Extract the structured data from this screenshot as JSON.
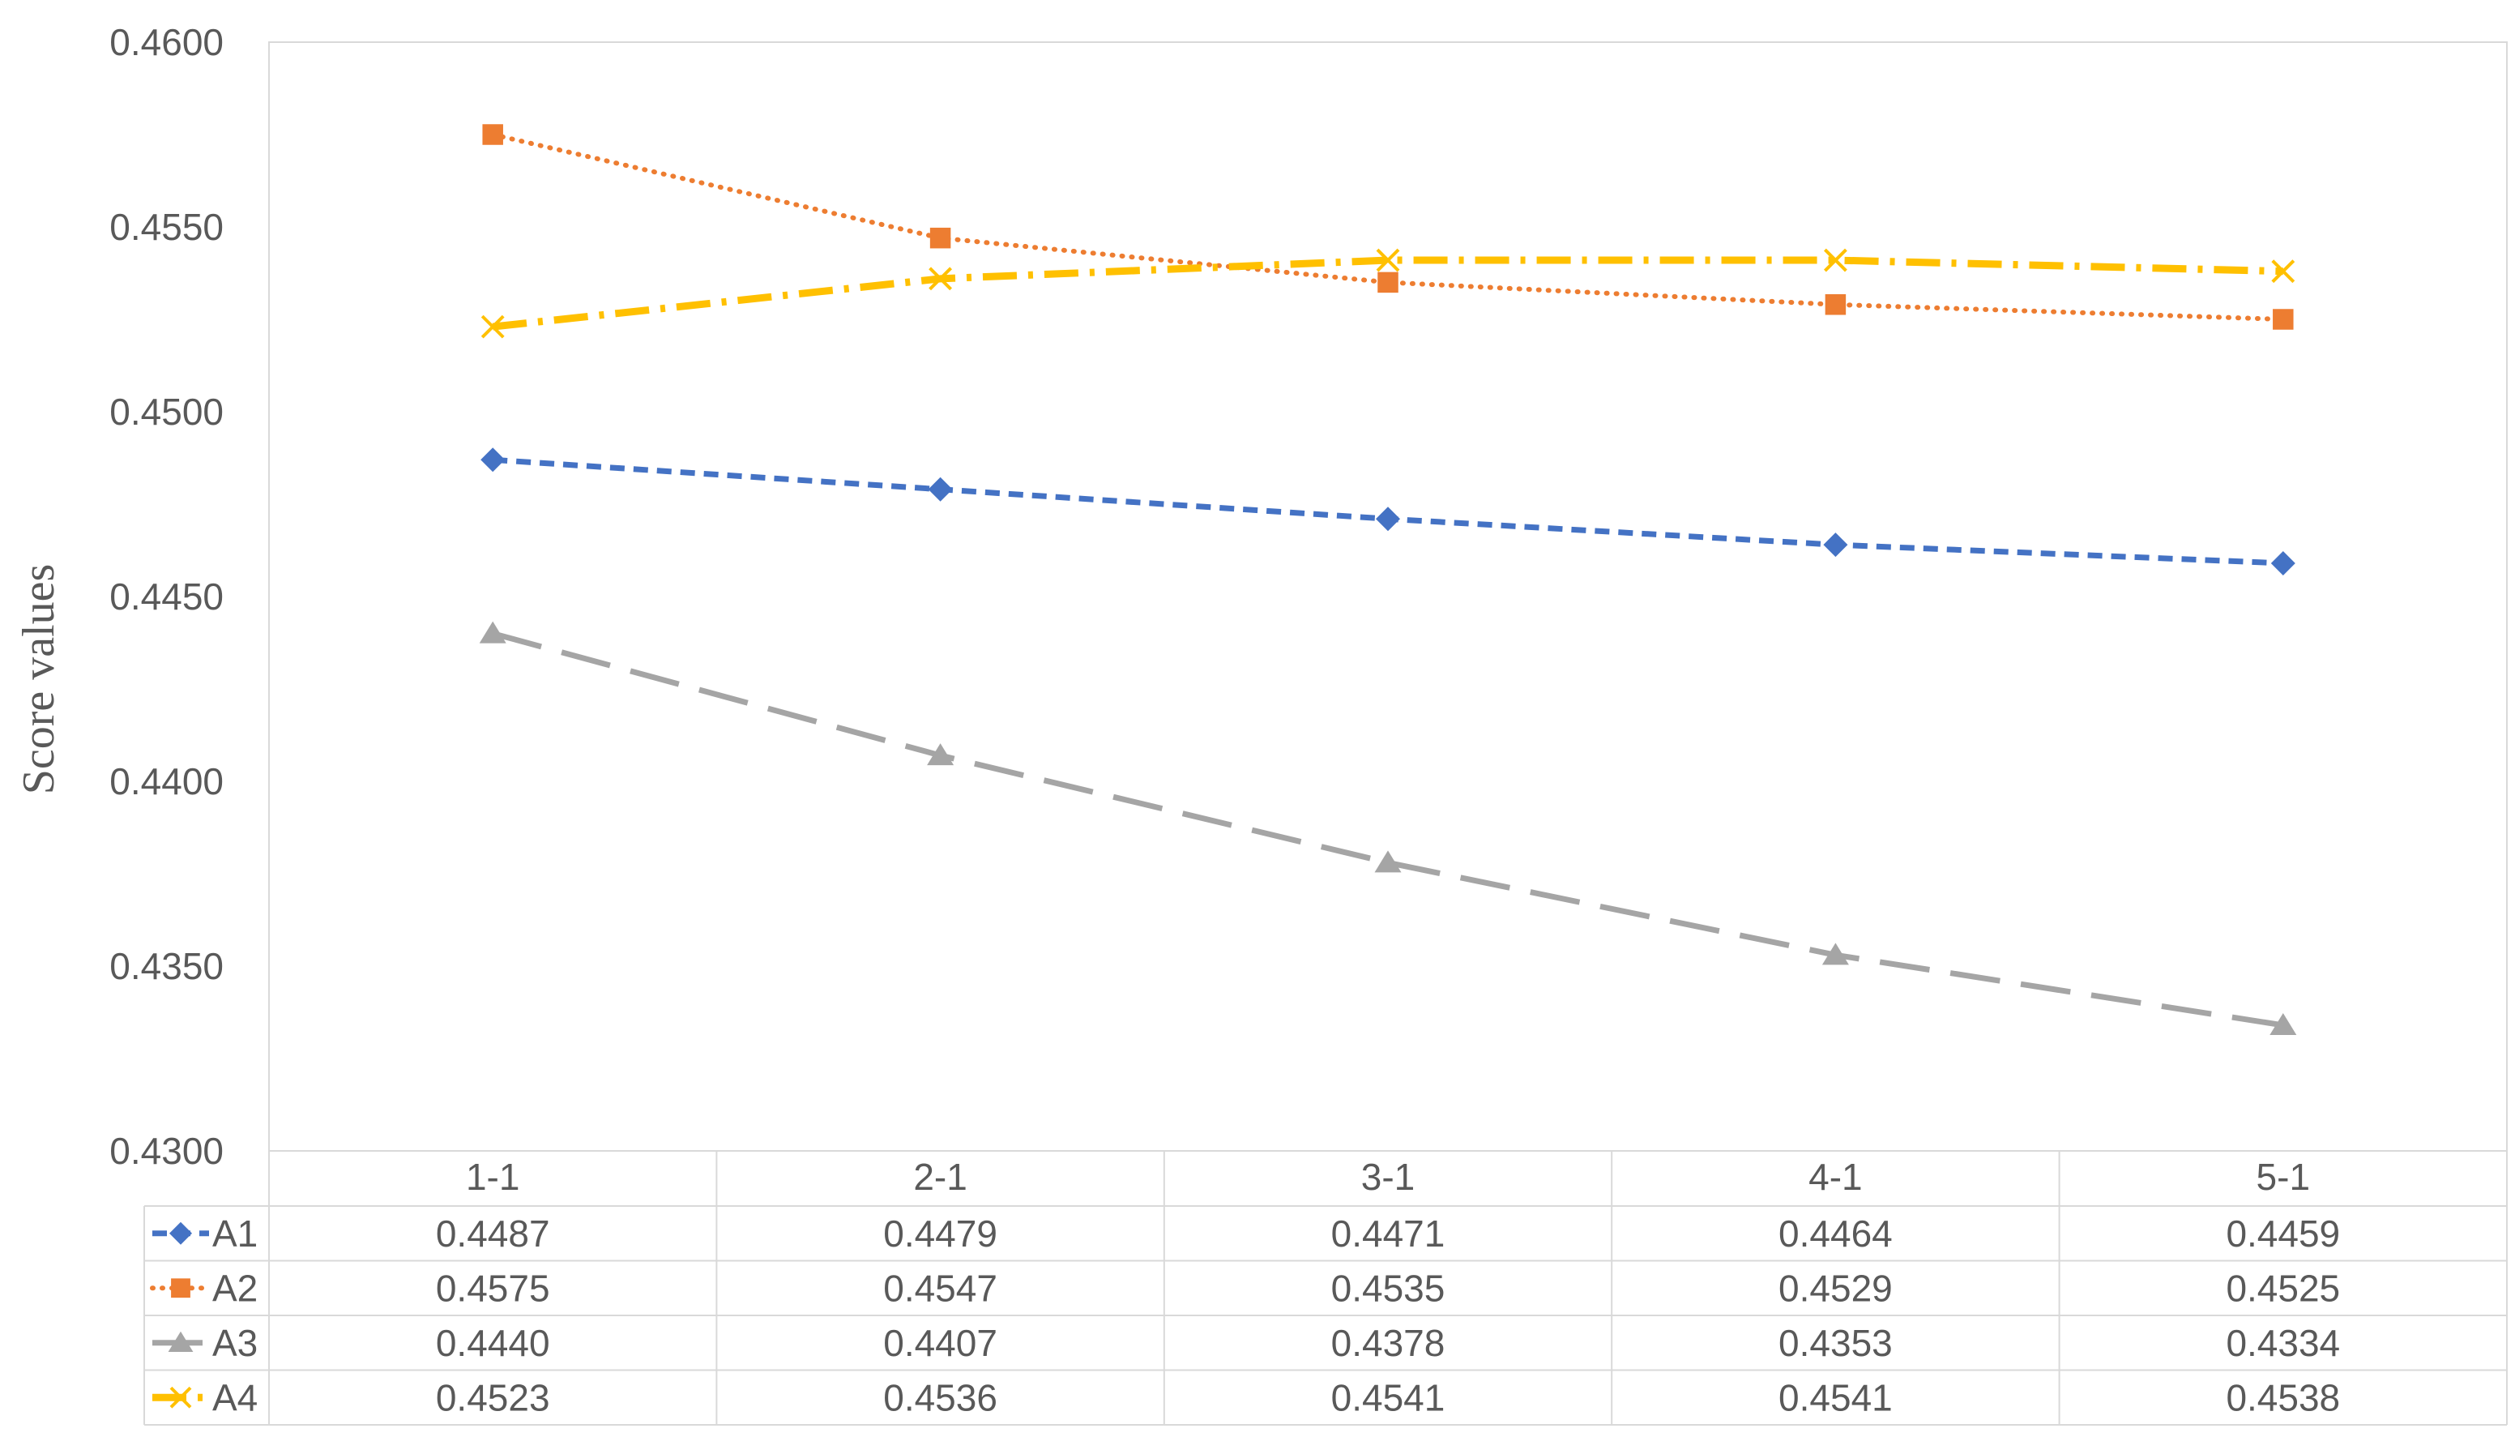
{
  "chart_data": {
    "type": "line",
    "ylabel": "Score values",
    "xlabel": "",
    "title": "",
    "ylim": [
      0.43,
      0.46
    ],
    "y_ticks": [
      "0.4300",
      "0.4350",
      "0.4400",
      "0.4450",
      "0.4500",
      "0.4550",
      "0.4600"
    ],
    "y_tick_values": [
      0.43,
      0.435,
      0.44,
      0.445,
      0.45,
      0.455,
      0.46
    ],
    "categories": [
      "1-1",
      "2-1",
      "3-1",
      "4-1",
      "5-1"
    ],
    "grid": false,
    "legend": "data-table-below",
    "series": [
      {
        "name": "A1",
        "values": [
          0.4487,
          0.4479,
          0.4471,
          0.4464,
          0.4459
        ],
        "labels": [
          "0.4487",
          "0.4479",
          "0.4471",
          "0.4464",
          "0.4459"
        ],
        "color": "#4472C4",
        "marker": "diamond",
        "dash": "dash"
      },
      {
        "name": "A2",
        "values": [
          0.4575,
          0.4547,
          0.4535,
          0.4529,
          0.4525
        ],
        "labels": [
          "0.4575",
          "0.4547",
          "0.4535",
          "0.4529",
          "0.4525"
        ],
        "color": "#ED7D31",
        "marker": "square",
        "dash": "dot"
      },
      {
        "name": "A3",
        "values": [
          0.444,
          0.4407,
          0.4378,
          0.4353,
          0.4334
        ],
        "labels": [
          "0.4440",
          "0.4407",
          "0.4378",
          "0.4353",
          "0.4334"
        ],
        "color": "#A5A5A5",
        "marker": "triangle",
        "dash": "longdash"
      },
      {
        "name": "A4",
        "values": [
          0.4523,
          0.4536,
          0.4541,
          0.4541,
          0.4538
        ],
        "labels": [
          "0.4523",
          "0.4536",
          "0.4541",
          "0.4541",
          "0.4538"
        ],
        "color": "#FFC000",
        "marker": "x",
        "dash": "dashdot"
      }
    ]
  }
}
